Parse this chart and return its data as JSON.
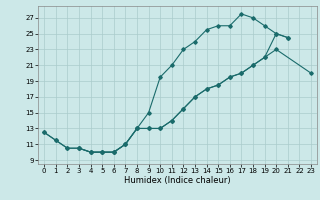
{
  "xlabel": "Humidex (Indice chaleur)",
  "bg_color": "#cce8e8",
  "grid_color": "#aacccc",
  "line_color": "#1a6b6b",
  "xlim": [
    -0.5,
    23.5
  ],
  "ylim": [
    8.5,
    28.5
  ],
  "xticks": [
    0,
    1,
    2,
    3,
    4,
    5,
    6,
    7,
    8,
    9,
    10,
    11,
    12,
    13,
    14,
    15,
    16,
    17,
    18,
    19,
    20,
    21,
    22,
    23
  ],
  "yticks": [
    9,
    11,
    13,
    15,
    17,
    19,
    21,
    23,
    25,
    27
  ],
  "line1_x": [
    0,
    1,
    2,
    3,
    4,
    5,
    6,
    7,
    8,
    9,
    10,
    11,
    12,
    13,
    14,
    15,
    16,
    17,
    18,
    19,
    20,
    21
  ],
  "line1_y": [
    12.5,
    11.5,
    10.5,
    10.5,
    10.0,
    10.0,
    10.0,
    11.0,
    13.0,
    15.0,
    19.5,
    21.0,
    23.0,
    24.0,
    25.5,
    26.0,
    26.0,
    27.5,
    27.0,
    26.0,
    25.0,
    24.5
  ],
  "line2_x": [
    0,
    1,
    2,
    3,
    4,
    5,
    6,
    7,
    8,
    9,
    10,
    11,
    12,
    13,
    14,
    15,
    16,
    17,
    18,
    19,
    20,
    23
  ],
  "line2_y": [
    12.5,
    11.5,
    10.5,
    10.5,
    10.0,
    10.0,
    10.0,
    11.0,
    13.0,
    13.0,
    13.0,
    14.0,
    15.5,
    17.0,
    18.0,
    18.5,
    19.5,
    20.0,
    21.0,
    22.0,
    23.0,
    20.0
  ],
  "line3_x": [
    3,
    4,
    5,
    6,
    7,
    8,
    9,
    10,
    11,
    12,
    13,
    14,
    15,
    16,
    17,
    18,
    19,
    20,
    21
  ],
  "line3_y": [
    10.5,
    10.0,
    10.0,
    10.0,
    11.0,
    13.0,
    13.0,
    13.0,
    14.0,
    15.5,
    17.0,
    18.0,
    18.5,
    19.5,
    20.0,
    21.0,
    22.0,
    25.0,
    24.5
  ]
}
